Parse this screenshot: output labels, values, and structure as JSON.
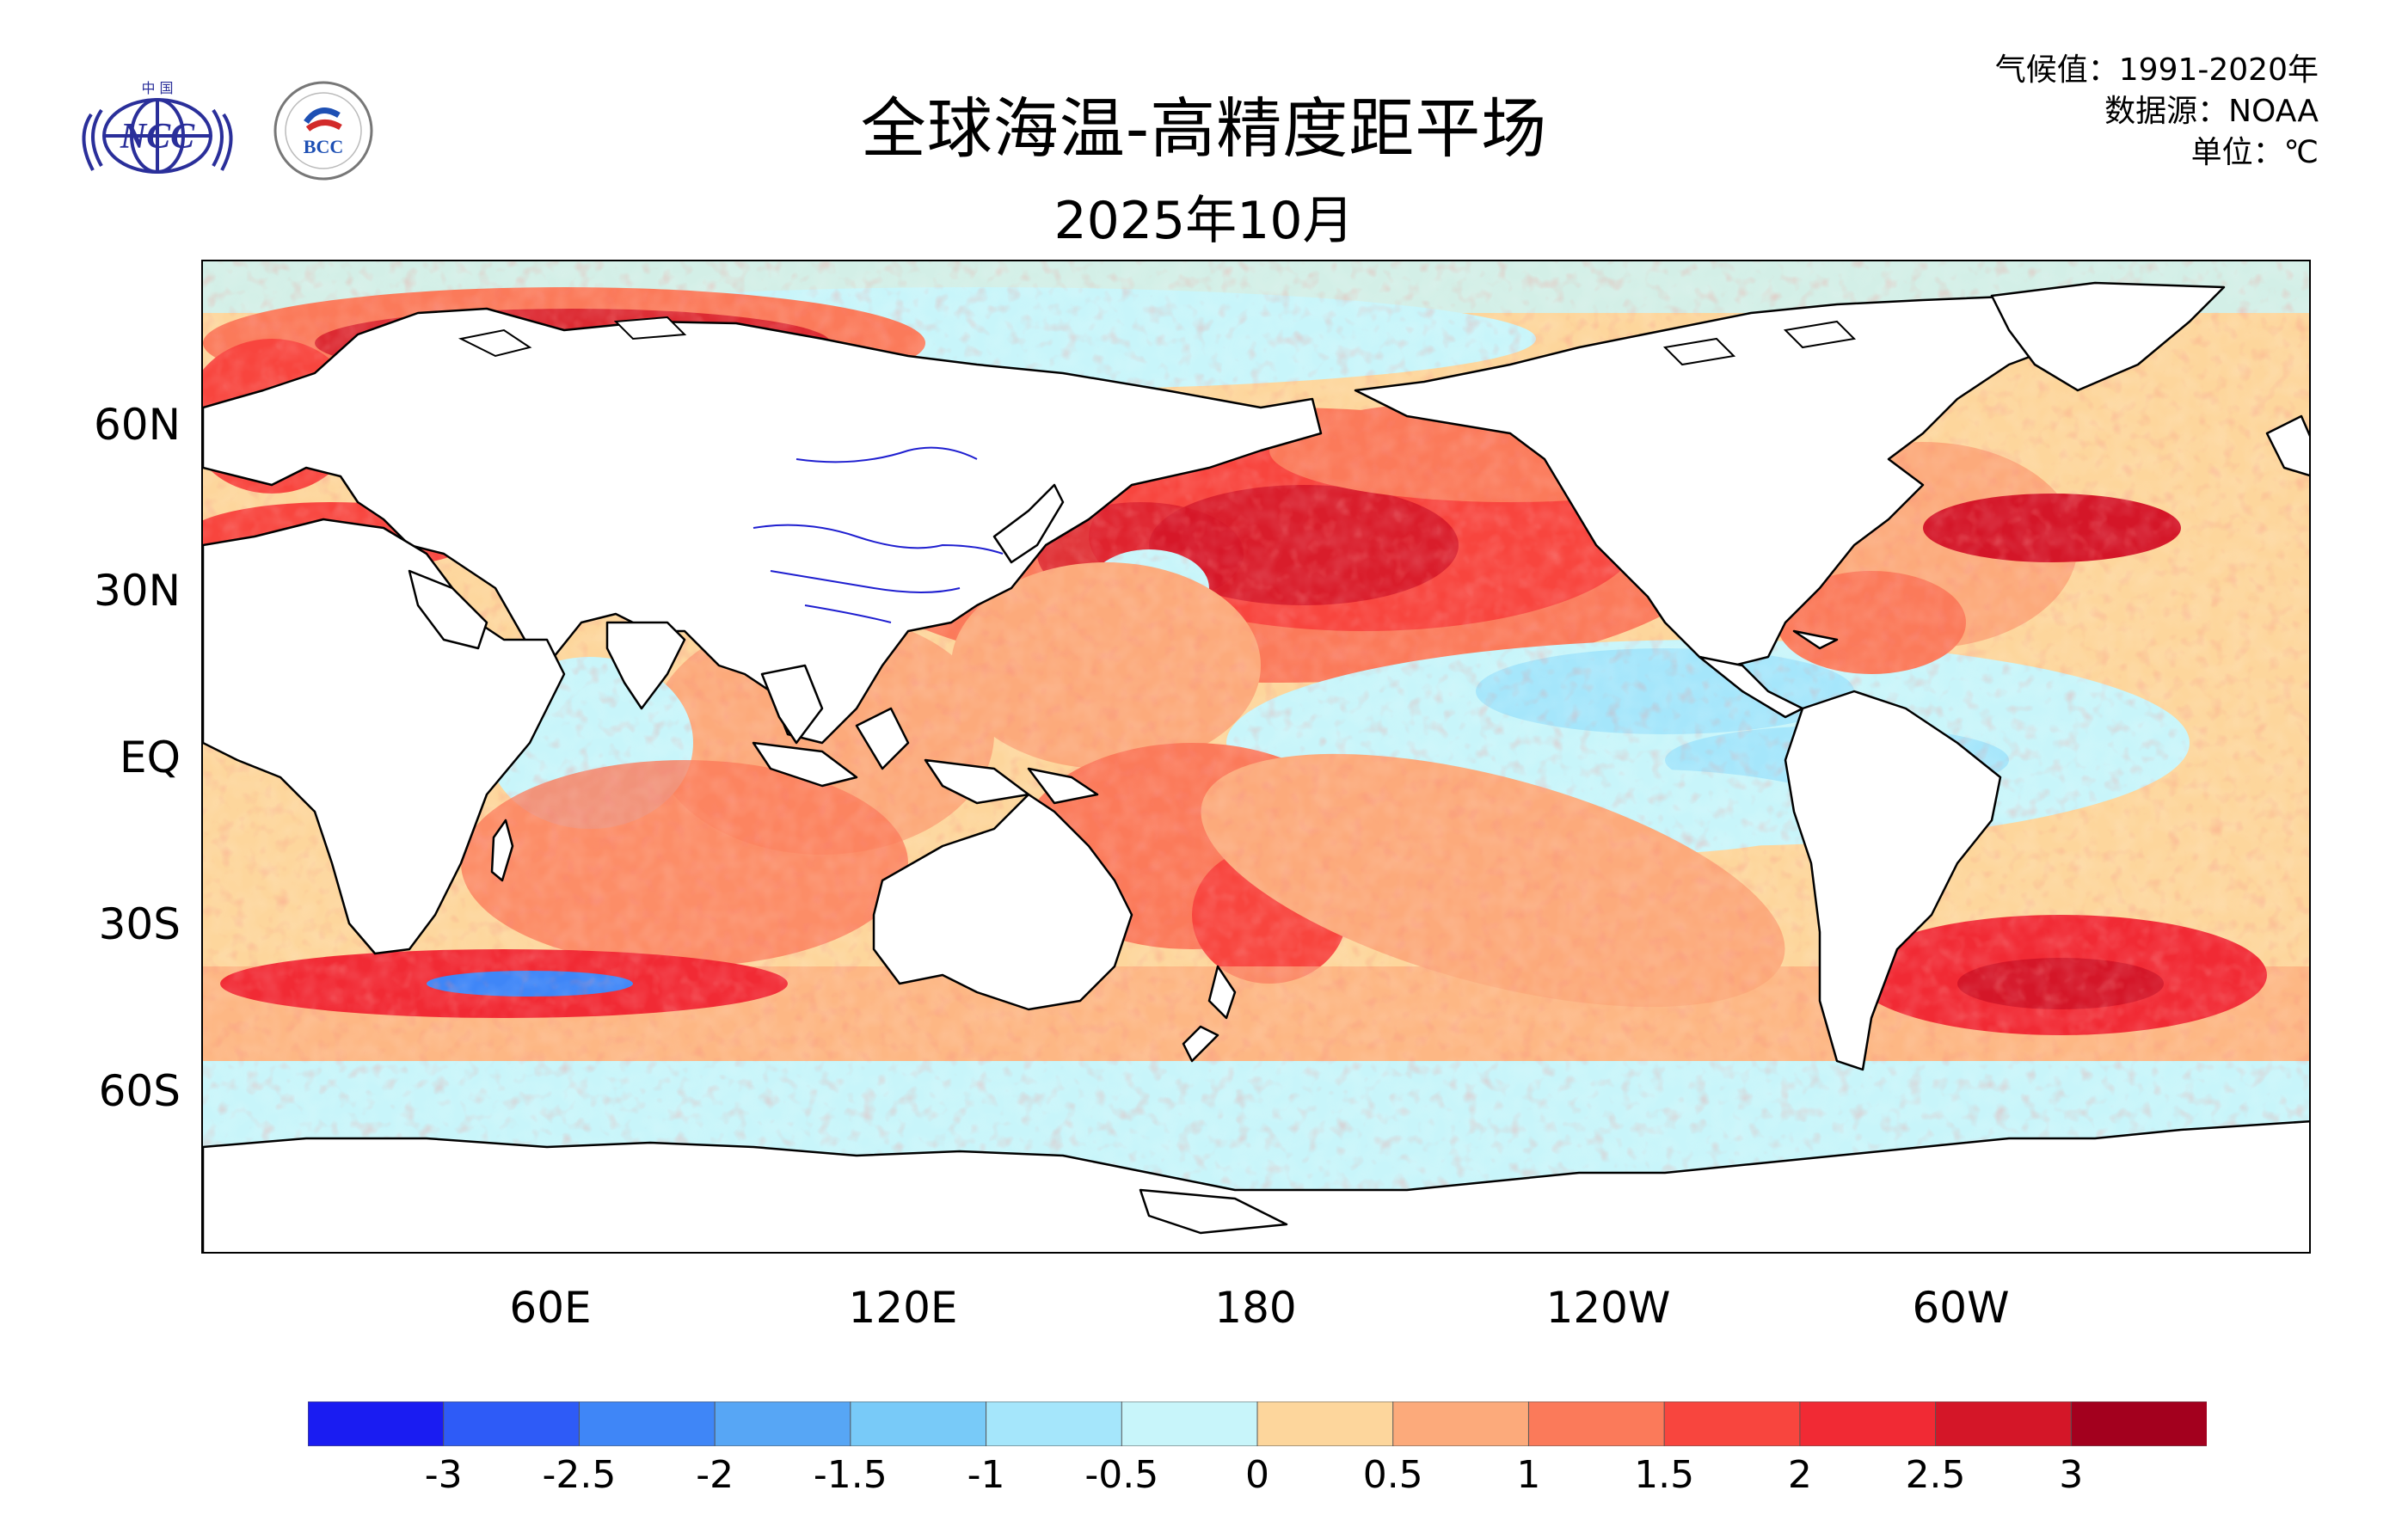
{
  "title": "全球海温-高精度距平场",
  "subtitle": "2025年10月",
  "meta": {
    "climatology": "气候值：1991-2020年",
    "source": "数据源：NOAA",
    "unit": "单位：℃"
  },
  "logos": {
    "ncc_text": "NCC",
    "ncc_top": "中 国",
    "bcc_text": "BCC"
  },
  "lat_labels": [
    "60N",
    "30N",
    "EQ",
    "30S",
    "60S"
  ],
  "lon_labels": [
    "60E",
    "120E",
    "180",
    "120W",
    "60W"
  ],
  "colorbar": {
    "labels": [
      "-3",
      "-2.5",
      "-2",
      "-1.5",
      "-1",
      "-0.5",
      "0",
      "0.5",
      "1",
      "1.5",
      "2",
      "2.5",
      "3"
    ],
    "colors": [
      "#1a1cf2",
      "#2e5bf7",
      "#3f86f7",
      "#57a6f5",
      "#78caf8",
      "#a5e6fb",
      "#c8f5fa",
      "#fdd69c",
      "#fcaa7b",
      "#fb7a5a",
      "#f8453e",
      "#f12a34",
      "#d41628",
      "#a3001e"
    ]
  },
  "colors": {
    "land": "#ffffff",
    "coast": "#000000",
    "rivers": "#1f1fd0"
  }
}
